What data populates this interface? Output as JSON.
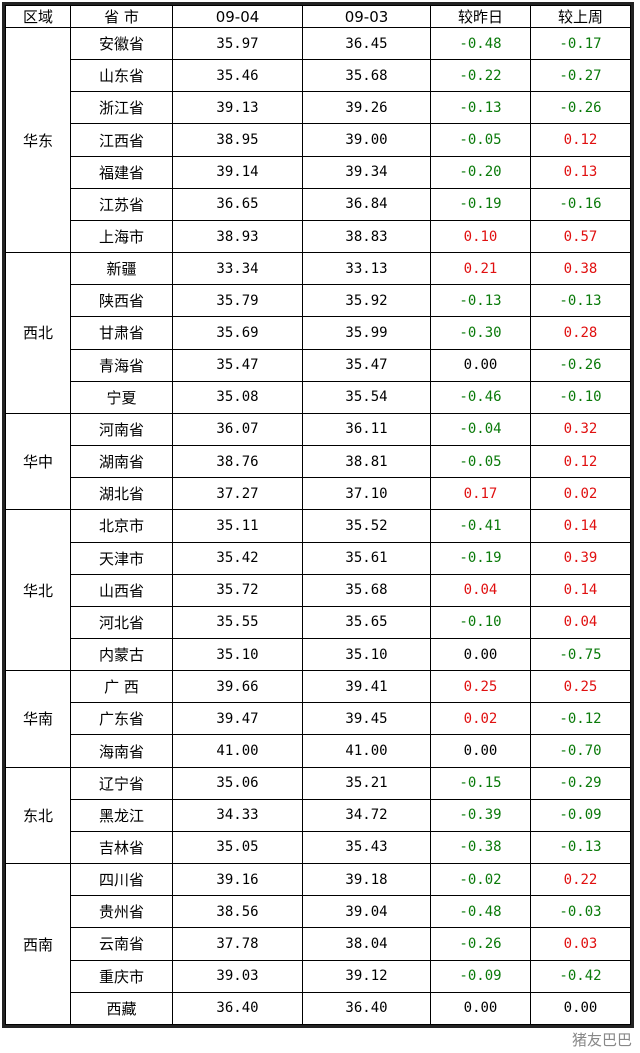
{
  "headers": [
    "区域",
    "省 市",
    "09-04",
    "09-03",
    "较昨日",
    "较上周"
  ],
  "colors": {
    "negative": "#0a7a0a",
    "positive": "#e01010",
    "zero": "#000000"
  },
  "regions": [
    {
      "name": "华东",
      "rows": [
        [
          "安徽省",
          "35.97",
          "36.45",
          "-0.48",
          "-0.17"
        ],
        [
          "山东省",
          "35.46",
          "35.68",
          "-0.22",
          "-0.27"
        ],
        [
          "浙江省",
          "39.13",
          "39.26",
          "-0.13",
          "-0.26"
        ],
        [
          "江西省",
          "38.95",
          "39.00",
          "-0.05",
          "0.12"
        ],
        [
          "福建省",
          "39.14",
          "39.34",
          "-0.20",
          "0.13"
        ],
        [
          "江苏省",
          "36.65",
          "36.84",
          "-0.19",
          "-0.16"
        ],
        [
          "上海市",
          "38.93",
          "38.83",
          "0.10",
          "0.57"
        ]
      ]
    },
    {
      "name": "西北",
      "rows": [
        [
          "新疆",
          "33.34",
          "33.13",
          "0.21",
          "0.38"
        ],
        [
          "陕西省",
          "35.79",
          "35.92",
          "-0.13",
          "-0.13"
        ],
        [
          "甘肃省",
          "35.69",
          "35.99",
          "-0.30",
          "0.28"
        ],
        [
          "青海省",
          "35.47",
          "35.47",
          "0.00",
          "-0.26"
        ],
        [
          "宁夏",
          "35.08",
          "35.54",
          "-0.46",
          "-0.10"
        ]
      ]
    },
    {
      "name": "华中",
      "rows": [
        [
          "河南省",
          "36.07",
          "36.11",
          "-0.04",
          "0.32"
        ],
        [
          "湖南省",
          "38.76",
          "38.81",
          "-0.05",
          "0.12"
        ],
        [
          "湖北省",
          "37.27",
          "37.10",
          "0.17",
          "0.02"
        ]
      ]
    },
    {
      "name": "华北",
      "rows": [
        [
          "北京市",
          "35.11",
          "35.52",
          "-0.41",
          "0.14"
        ],
        [
          "天津市",
          "35.42",
          "35.61",
          "-0.19",
          "0.39"
        ],
        [
          "山西省",
          "35.72",
          "35.68",
          "0.04",
          "0.14"
        ],
        [
          "河北省",
          "35.55",
          "35.65",
          "-0.10",
          "0.04"
        ],
        [
          "内蒙古",
          "35.10",
          "35.10",
          "0.00",
          "-0.75"
        ]
      ]
    },
    {
      "name": "华南",
      "rows": [
        [
          "广 西",
          "39.66",
          "39.41",
          "0.25",
          "0.25"
        ],
        [
          "广东省",
          "39.47",
          "39.45",
          "0.02",
          "-0.12"
        ],
        [
          "海南省",
          "41.00",
          "41.00",
          "0.00",
          "-0.70"
        ]
      ]
    },
    {
      "name": "东北",
      "rows": [
        [
          "辽宁省",
          "35.06",
          "35.21",
          "-0.15",
          "-0.29"
        ],
        [
          "黑龙江",
          "34.33",
          "34.72",
          "-0.39",
          "-0.09"
        ],
        [
          "吉林省",
          "35.05",
          "35.43",
          "-0.38",
          "-0.13"
        ]
      ]
    },
    {
      "name": "西南",
      "rows": [
        [
          "四川省",
          "39.16",
          "39.18",
          "-0.02",
          "0.22"
        ],
        [
          "贵州省",
          "38.56",
          "39.04",
          "-0.48",
          "-0.03"
        ],
        [
          "云南省",
          "37.78",
          "38.04",
          "-0.26",
          "0.03"
        ],
        [
          "重庆市",
          "39.03",
          "39.12",
          "-0.09",
          "-0.42"
        ],
        [
          "西藏",
          "36.40",
          "36.40",
          "0.00",
          "0.00"
        ]
      ]
    }
  ],
  "watermark": "猪友巴巴"
}
